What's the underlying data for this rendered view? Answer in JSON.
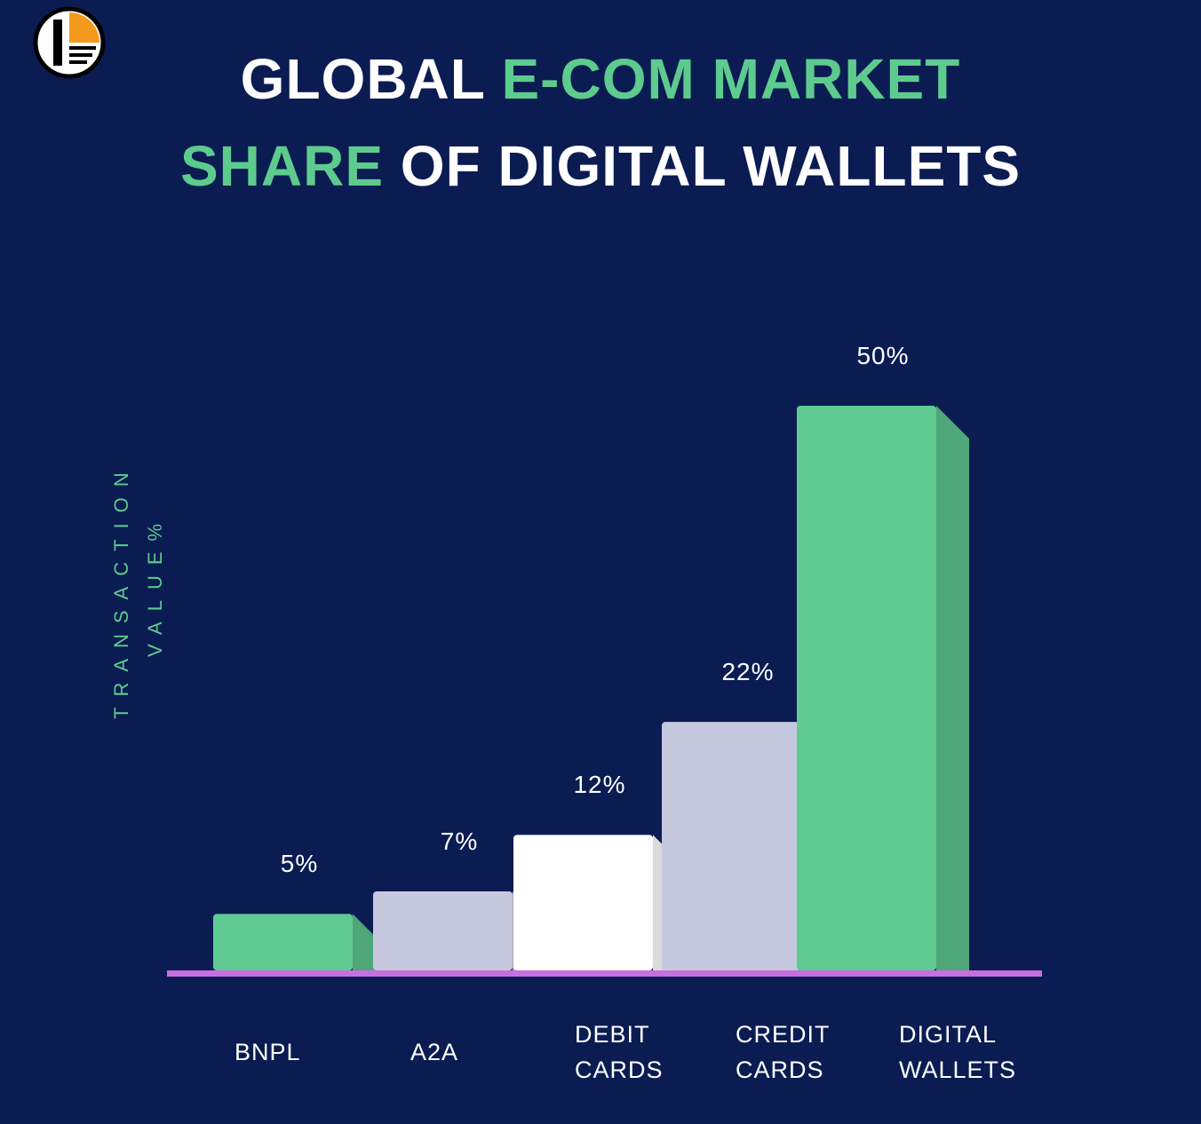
{
  "chart_data": {
    "type": "bar",
    "title": {
      "line1": [
        "GLOBAL",
        "E-COM MARKET"
      ],
      "line2": [
        "SHARE",
        "OF DIGITAL WALLETS"
      ]
    },
    "ylabel": [
      "TRANSACTION",
      "VALUE%"
    ],
    "categories": [
      "BNPL",
      "A2A",
      "DEBIT CARDS",
      "CREDIT CARDS",
      "DIGITAL WALLETS"
    ],
    "values": [
      5,
      7,
      12,
      22,
      50
    ],
    "value_labels": [
      "5%",
      "7%",
      "12%",
      "22%",
      "50%"
    ],
    "colors": [
      "#5fcb93",
      "#c5c8de",
      "#ffffff",
      "#c5c8de",
      "#5fcb93"
    ]
  }
}
